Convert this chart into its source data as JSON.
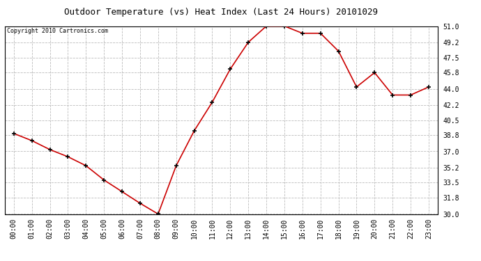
{
  "title": "Outdoor Temperature (vs) Heat Index (Last 24 Hours) 20101029",
  "copyright": "Copyright 2010 Cartronics.com",
  "hours": [
    "00:00",
    "01:00",
    "02:00",
    "03:00",
    "04:00",
    "05:00",
    "06:00",
    "07:00",
    "08:00",
    "09:00",
    "10:00",
    "11:00",
    "12:00",
    "13:00",
    "14:00",
    "15:00",
    "16:00",
    "17:00",
    "18:00",
    "19:00",
    "20:00",
    "21:00",
    "22:00",
    "23:00"
  ],
  "values": [
    39.0,
    38.2,
    37.2,
    36.4,
    35.4,
    33.8,
    32.5,
    31.2,
    30.0,
    35.4,
    39.3,
    42.5,
    46.2,
    49.2,
    51.0,
    51.0,
    50.2,
    50.2,
    48.2,
    44.2,
    45.8,
    43.3,
    43.3,
    44.2
  ],
  "line_color": "#cc0000",
  "marker": "+",
  "marker_size": 4,
  "marker_color": "#000000",
  "bg_color": "#ffffff",
  "plot_bg_color": "#ffffff",
  "grid_color": "#bbbbbb",
  "grid_style": "--",
  "title_fontsize": 9,
  "yticks": [
    30.0,
    31.8,
    33.5,
    35.2,
    37.0,
    38.8,
    40.5,
    42.2,
    44.0,
    45.8,
    47.5,
    49.2,
    51.0
  ],
  "ymin": 30.0,
  "ymax": 51.0,
  "border_color": "#000000",
  "tick_fontsize": 7,
  "copyright_fontsize": 6
}
